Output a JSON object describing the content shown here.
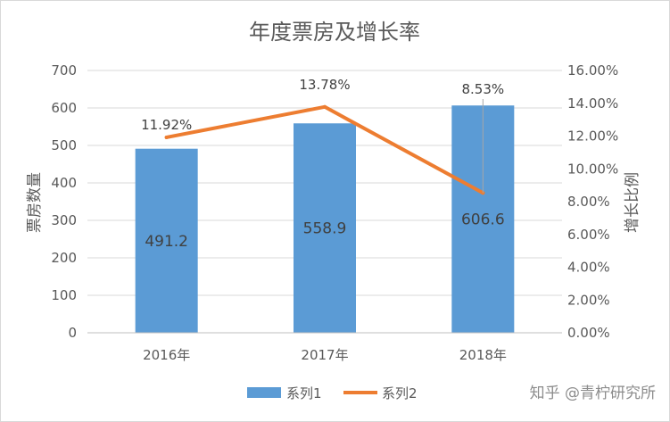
{
  "chart_data": {
    "type": "bar",
    "title": "年度票房及增长率",
    "categories": [
      "2016年",
      "2017年",
      "2018年"
    ],
    "series": [
      {
        "name": "系列1",
        "type": "bar",
        "axis": "left",
        "values": [
          491.2,
          558.9,
          606.6
        ],
        "labels": [
          "491.2",
          "558.9",
          "606.6"
        ],
        "color": "#5b9bd5"
      },
      {
        "name": "系列2",
        "type": "line",
        "axis": "right",
        "values": [
          0.1192,
          0.1378,
          0.0853
        ],
        "labels": [
          "11.92%",
          "13.78%",
          "8.53%"
        ],
        "color": "#ed7d31"
      }
    ],
    "ylabel": "票房数量",
    "y2label": "增长比例",
    "ylim": [
      0,
      700
    ],
    "y2lim": [
      0,
      0.16
    ],
    "yticks": [
      "0",
      "100",
      "200",
      "300",
      "400",
      "500",
      "600",
      "700"
    ],
    "y2ticks": [
      "0.00%",
      "2.00%",
      "4.00%",
      "6.00%",
      "8.00%",
      "10.00%",
      "12.00%",
      "14.00%",
      "16.00%"
    ],
    "grid": true,
    "legend": "bottom"
  },
  "watermark": "知乎 @青柠研究所"
}
